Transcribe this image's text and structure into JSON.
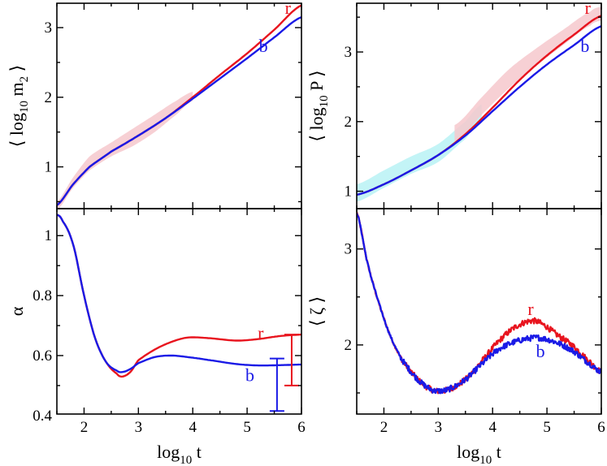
{
  "colors": {
    "red": "#e8141e",
    "blue": "#1a1ae6",
    "band_pink": "#f6c8cc",
    "band_cyan": "#b8f2f4"
  },
  "chart_data": [
    {
      "id": "top-left",
      "type": "line",
      "ylabel": {
        "pre": "⟨ log",
        "sub": "10",
        "post": " m",
        "sub2": "2",
        "end": " ⟩"
      },
      "xlim": [
        1.5,
        6
      ],
      "ylim": [
        0.4,
        3.35
      ],
      "yticks": [
        1,
        2,
        3
      ],
      "ytick_labels": [
        "1",
        "2",
        "3"
      ],
      "xticks": [
        2,
        3,
        4,
        5,
        6
      ],
      "band": {
        "color": "pink",
        "x": [
          1.5,
          1.8,
          2.1,
          2.5,
          2.9,
          3.3,
          3.7,
          4.0
        ],
        "lower": [
          0.38,
          0.7,
          0.95,
          1.15,
          1.3,
          1.5,
          1.75,
          1.95
        ],
        "upper": [
          0.5,
          0.85,
          1.15,
          1.35,
          1.55,
          1.75,
          1.95,
          2.08
        ]
      },
      "series": [
        {
          "name": "r",
          "color": "red",
          "x": [
            1.5,
            1.8,
            2.1,
            2.5,
            3.0,
            3.5,
            4.0,
            4.5,
            5.0,
            5.5,
            6.0
          ],
          "y": [
            0.45,
            0.75,
            1.0,
            1.22,
            1.45,
            1.7,
            2.0,
            2.32,
            2.63,
            2.97,
            3.32
          ]
        },
        {
          "name": "b",
          "color": "blue",
          "x": [
            1.5,
            1.8,
            2.1,
            2.5,
            3.0,
            3.5,
            4.0,
            4.5,
            5.0,
            5.5,
            6.0
          ],
          "y": [
            0.45,
            0.75,
            1.0,
            1.22,
            1.45,
            1.7,
            1.98,
            2.27,
            2.56,
            2.86,
            3.15
          ]
        }
      ],
      "annotations": [
        {
          "text": "r",
          "color": "red",
          "x": 5.75,
          "y": 3.2
        },
        {
          "text": "b",
          "color": "blue",
          "x": 5.3,
          "y": 2.65
        }
      ]
    },
    {
      "id": "top-right",
      "type": "line",
      "ylabel": {
        "pre": "⟨ log",
        "sub": "10",
        "post": " P",
        "sub2": "",
        "end": " ⟩"
      },
      "xlim": [
        1.5,
        6
      ],
      "ylim": [
        0.75,
        3.7
      ],
      "yticks": [
        1,
        2,
        3
      ],
      "ytick_labels": [
        "1",
        "2",
        "3"
      ],
      "xticks": [
        2,
        3,
        4,
        5,
        6
      ],
      "band": {
        "color": "cyan",
        "x": [
          1.5,
          2.0,
          2.5,
          3.0,
          3.5,
          3.8
        ],
        "lower": [
          0.85,
          1.05,
          1.25,
          1.42,
          1.75,
          2.0
        ],
        "upper": [
          1.1,
          1.3,
          1.5,
          1.68,
          2.0,
          2.25
        ]
      },
      "band2": {
        "color": "pink",
        "x": [
          3.3,
          3.8,
          4.3,
          4.8,
          5.3,
          5.8,
          6.0
        ],
        "lower": [
          1.7,
          2.1,
          2.48,
          2.8,
          3.1,
          3.38,
          3.45
        ],
        "upper": [
          1.95,
          2.35,
          2.75,
          3.05,
          3.32,
          3.58,
          3.65
        ]
      },
      "series": [
        {
          "name": "r",
          "color": "red",
          "x": [
            1.5,
            2.0,
            2.5,
            3.0,
            3.5,
            4.0,
            4.5,
            5.0,
            5.5,
            6.0
          ],
          "y": [
            0.95,
            1.1,
            1.3,
            1.52,
            1.82,
            2.2,
            2.6,
            2.95,
            3.25,
            3.52
          ]
        },
        {
          "name": "b",
          "color": "blue",
          "x": [
            1.5,
            2.0,
            2.5,
            3.0,
            3.5,
            4.0,
            4.5,
            5.0,
            5.5,
            6.0
          ],
          "y": [
            0.95,
            1.1,
            1.3,
            1.52,
            1.8,
            2.15,
            2.5,
            2.82,
            3.1,
            3.37
          ]
        }
      ],
      "annotations": [
        {
          "text": "r",
          "color": "red",
          "x": 5.75,
          "y": 3.55
        },
        {
          "text": "b",
          "color": "blue",
          "x": 5.7,
          "y": 3.0
        }
      ]
    },
    {
      "id": "bottom-left",
      "type": "line",
      "ylabel": {
        "pre": "α",
        "sub": "",
        "post": "",
        "sub2": "",
        "end": ""
      },
      "xlabel": {
        "pre": "log",
        "sub": "10",
        "post": " t"
      },
      "xlim": [
        1.5,
        6
      ],
      "ylim": [
        0.405,
        1.09
      ],
      "yticks": [
        0.4,
        0.6,
        0.8,
        1.0
      ],
      "ytick_labels": [
        "0.4",
        "0.6",
        "0.8",
        "1"
      ],
      "xticks": [
        2,
        3,
        4,
        5,
        6
      ],
      "xtick_labels": [
        "2",
        "3",
        "4",
        "5",
        "6"
      ],
      "series": [
        {
          "name": "r",
          "color": "red",
          "x": [
            1.5,
            1.6,
            1.8,
            2.0,
            2.2,
            2.4,
            2.6,
            2.7,
            2.85,
            3.0,
            3.3,
            3.6,
            3.9,
            4.3,
            4.8,
            5.2,
            5.6,
            6.0
          ],
          "y": [
            1.07,
            1.05,
            0.97,
            0.8,
            0.66,
            0.58,
            0.54,
            0.53,
            0.545,
            0.585,
            0.62,
            0.645,
            0.66,
            0.658,
            0.65,
            0.655,
            0.665,
            0.67
          ]
        },
        {
          "name": "b",
          "color": "blue",
          "x": [
            1.5,
            1.6,
            1.8,
            2.0,
            2.2,
            2.4,
            2.6,
            2.7,
            2.85,
            3.0,
            3.3,
            3.6,
            3.9,
            4.3,
            4.8,
            5.2,
            5.6,
            6.0
          ],
          "y": [
            1.07,
            1.05,
            0.97,
            0.8,
            0.66,
            0.58,
            0.55,
            0.545,
            0.555,
            0.575,
            0.595,
            0.6,
            0.595,
            0.585,
            0.572,
            0.567,
            0.568,
            0.57
          ]
        }
      ],
      "errorbars": [
        {
          "color": "red",
          "x": 5.82,
          "low": 0.5,
          "high": 0.67
        },
        {
          "color": "blue",
          "x": 5.55,
          "low": 0.415,
          "high": 0.59
        }
      ],
      "annotations": [
        {
          "text": "r",
          "color": "red",
          "x": 5.25,
          "y": 0.655
        },
        {
          "text": "b",
          "color": "blue",
          "x": 5.05,
          "y": 0.515
        }
      ]
    },
    {
      "id": "bottom-right",
      "type": "line",
      "ylabel": {
        "pre": "⟨ ζ ⟩",
        "sub": "",
        "post": "",
        "sub2": "",
        "end": ""
      },
      "xlabel": {
        "pre": "log",
        "sub": "10",
        "post": " t"
      },
      "xlim": [
        1.5,
        6
      ],
      "ylim": [
        1.28,
        3.42
      ],
      "yticks": [
        2,
        3
      ],
      "ytick_labels": [
        "2",
        "3"
      ],
      "xticks": [
        2,
        3,
        4,
        5,
        6
      ],
      "xtick_labels": [
        "2",
        "3",
        "4",
        "5",
        "6"
      ],
      "noisy": true,
      "series": [
        {
          "name": "r",
          "color": "red",
          "x": [
            1.5,
            1.7,
            1.9,
            2.1,
            2.3,
            2.5,
            2.7,
            2.9,
            3.0,
            3.2,
            3.5,
            3.8,
            4.1,
            4.4,
            4.7,
            4.9,
            5.2,
            5.5,
            5.8,
            6.0
          ],
          "y": [
            3.38,
            2.85,
            2.45,
            2.12,
            1.88,
            1.72,
            1.6,
            1.53,
            1.52,
            1.54,
            1.64,
            1.83,
            2.03,
            2.18,
            2.25,
            2.22,
            2.1,
            1.98,
            1.82,
            1.72
          ]
        },
        {
          "name": "b",
          "color": "blue",
          "x": [
            1.5,
            1.7,
            1.9,
            2.1,
            2.3,
            2.5,
            2.7,
            2.9,
            3.0,
            3.2,
            3.5,
            3.8,
            4.1,
            4.4,
            4.7,
            4.9,
            5.2,
            5.5,
            5.8,
            6.0
          ],
          "y": [
            3.38,
            2.85,
            2.45,
            2.12,
            1.88,
            1.72,
            1.6,
            1.53,
            1.52,
            1.54,
            1.64,
            1.8,
            1.95,
            2.03,
            2.07,
            2.07,
            2.02,
            1.93,
            1.8,
            1.72
          ]
        }
      ],
      "annotations": [
        {
          "text": "r",
          "color": "red",
          "x": 4.7,
          "y": 2.31
        },
        {
          "text": "b",
          "color": "blue",
          "x": 4.88,
          "y": 1.87
        }
      ]
    }
  ]
}
